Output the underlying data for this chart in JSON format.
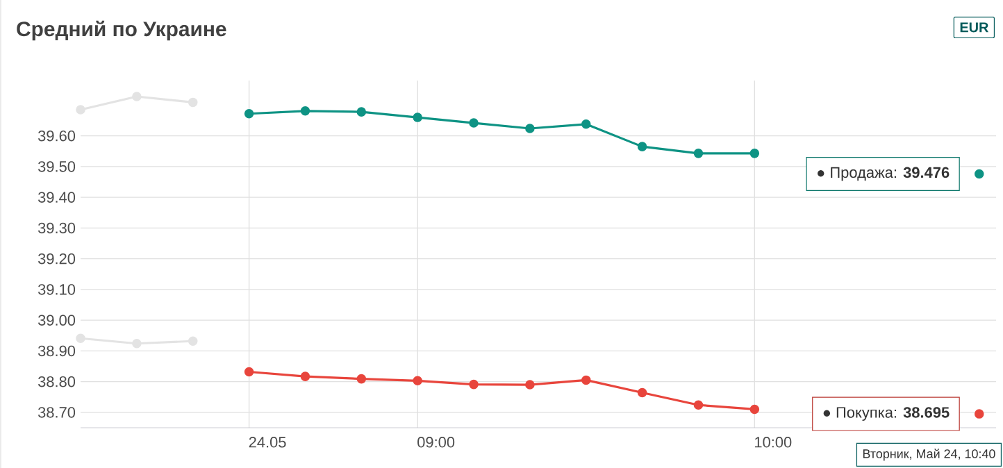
{
  "chart_data": {
    "type": "line",
    "title": "Средний по Украине",
    "categories": [
      null,
      null,
      null,
      "24.05",
      null,
      null,
      "09:00",
      null,
      null,
      null,
      null,
      null,
      "10:00",
      null,
      null,
      null,
      null
    ],
    "ylim": [
      38.65,
      39.78
    ],
    "yticks": [
      {
        "value": 38.7,
        "label": "38.70"
      },
      {
        "value": 38.8,
        "label": "38.80"
      },
      {
        "value": 38.9,
        "label": "38.90"
      },
      {
        "value": 39.0,
        "label": "39.00"
      },
      {
        "value": 39.1,
        "label": "39.10"
      },
      {
        "value": 39.2,
        "label": "39.20"
      },
      {
        "value": 39.3,
        "label": "39.30"
      },
      {
        "value": 39.4,
        "label": "39.40"
      },
      {
        "value": 39.5,
        "label": "39.50"
      },
      {
        "value": 39.6,
        "label": "39.60"
      }
    ],
    "grid": true,
    "marker": "circle",
    "line_style": "solid",
    "series": [
      {
        "color": "#e3e3e3",
        "values": [
          39.685,
          39.728,
          39.709,
          null,
          null,
          null,
          null,
          null,
          null,
          null,
          null,
          null,
          null,
          null,
          null,
          null,
          null
        ]
      },
      {
        "color": "#0e9384",
        "values": [
          null,
          null,
          null,
          39.672,
          39.681,
          39.678,
          39.66,
          39.642,
          39.624,
          39.638,
          39.565,
          39.543,
          39.543,
          null,
          null,
          null,
          39.476
        ]
      },
      {
        "color": "#e3e3e3",
        "values": [
          38.941,
          38.924,
          38.932,
          null,
          null,
          null,
          null,
          null,
          null,
          null,
          null,
          null,
          null,
          null,
          null,
          null,
          null
        ]
      },
      {
        "color": "#e8453c",
        "values": [
          null,
          null,
          null,
          38.832,
          38.817,
          38.809,
          38.803,
          38.791,
          38.79,
          38.805,
          38.764,
          38.724,
          38.71,
          null,
          null,
          null,
          38.695
        ]
      }
    ],
    "annotations": [
      "EUR",
      "● Продажа: **39.476**",
      "● Покупка: **38.695**",
      "Вторник, Май 24, 10:40"
    ]
  }
}
